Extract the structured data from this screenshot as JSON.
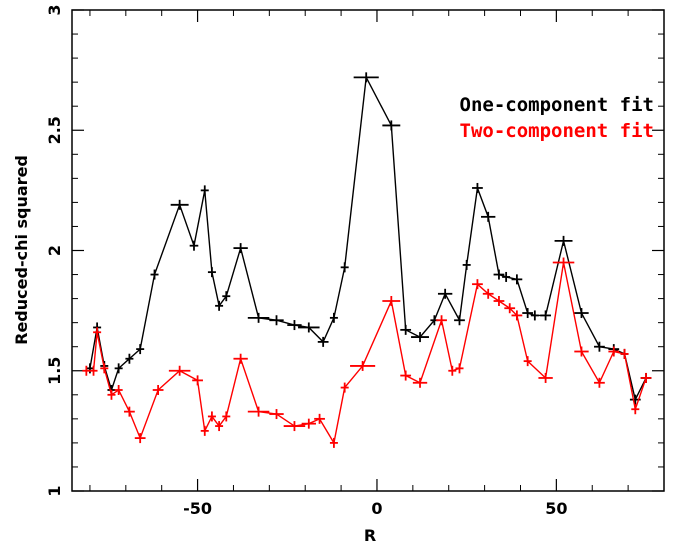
{
  "chart_data": {
    "type": "line",
    "xlabel": "R",
    "ylabel": "Reduced-chi squared",
    "xlim": [
      -85,
      80
    ],
    "ylim": [
      1,
      3
    ],
    "x_ticks": [
      -50,
      0,
      50
    ],
    "x_tick_labels": [
      "-50",
      "0",
      "50"
    ],
    "y_ticks": [
      1,
      1.5,
      2,
      2.5,
      3
    ],
    "y_tick_labels": [
      "1",
      "1.5",
      "2",
      "2.5",
      "3"
    ],
    "grid": false,
    "legend_position": "top-right",
    "series": [
      {
        "name": "One-component fit",
        "color": "#000000",
        "points": [
          {
            "x": -80,
            "y": 1.51,
            "xerr": 1
          },
          {
            "x": -78,
            "y": 1.68,
            "xerr": 0.6
          },
          {
            "x": -76,
            "y": 1.52,
            "xerr": 0.6
          },
          {
            "x": -74,
            "y": 1.42,
            "xerr": 0.6
          },
          {
            "x": -72,
            "y": 1.51,
            "xerr": 1
          },
          {
            "x": -69,
            "y": 1.55,
            "xerr": 1
          },
          {
            "x": -66,
            "y": 1.59,
            "xerr": 1
          },
          {
            "x": -62,
            "y": 1.9,
            "xerr": 1
          },
          {
            "x": -55,
            "y": 2.19,
            "xerr": 2.5
          },
          {
            "x": -51,
            "y": 2.02,
            "xerr": 1.2
          },
          {
            "x": -48,
            "y": 2.25,
            "xerr": 1
          },
          {
            "x": -46,
            "y": 1.91,
            "xerr": 0.6
          },
          {
            "x": -44,
            "y": 1.77,
            "xerr": 0.6
          },
          {
            "x": -42,
            "y": 1.81,
            "xerr": 0.6
          },
          {
            "x": -38,
            "y": 2.01,
            "xerr": 2
          },
          {
            "x": -33,
            "y": 1.72,
            "xerr": 3
          },
          {
            "x": -28,
            "y": 1.71,
            "xerr": 2
          },
          {
            "x": -23,
            "y": 1.69,
            "xerr": 2
          },
          {
            "x": -19,
            "y": 1.68,
            "xerr": 3
          },
          {
            "x": -15,
            "y": 1.62,
            "xerr": 1.5
          },
          {
            "x": -12,
            "y": 1.72,
            "xerr": 1
          },
          {
            "x": -9,
            "y": 1.93,
            "xerr": 0.6
          },
          {
            "x": -3,
            "y": 2.72,
            "xerr": 3.5
          },
          {
            "x": 4,
            "y": 2.52,
            "xerr": 2.5
          },
          {
            "x": 8,
            "y": 1.67,
            "xerr": 1.5
          },
          {
            "x": 12,
            "y": 1.64,
            "xerr": 2.5
          },
          {
            "x": 16,
            "y": 1.71,
            "xerr": 1
          },
          {
            "x": 19,
            "y": 1.82,
            "xerr": 2
          },
          {
            "x": 23,
            "y": 1.71,
            "xerr": 1.5
          },
          {
            "x": 25,
            "y": 1.94,
            "xerr": 0.6
          },
          {
            "x": 28,
            "y": 2.26,
            "xerr": 1.5
          },
          {
            "x": 31,
            "y": 2.14,
            "xerr": 2
          },
          {
            "x": 34,
            "y": 1.9,
            "xerr": 1.5
          },
          {
            "x": 36,
            "y": 1.89,
            "xerr": 1
          },
          {
            "x": 39,
            "y": 1.88,
            "xerr": 1.5
          },
          {
            "x": 42,
            "y": 1.74,
            "xerr": 1.5
          },
          {
            "x": 44,
            "y": 1.73,
            "xerr": 1
          },
          {
            "x": 47,
            "y": 1.73,
            "xerr": 1.5
          },
          {
            "x": 52,
            "y": 2.04,
            "xerr": 2.5
          },
          {
            "x": 57,
            "y": 1.74,
            "xerr": 2
          },
          {
            "x": 62,
            "y": 1.6,
            "xerr": 1.5
          },
          {
            "x": 66,
            "y": 1.59,
            "xerr": 1.5
          },
          {
            "x": 69,
            "y": 1.57,
            "xerr": 1
          },
          {
            "x": 72,
            "y": 1.38,
            "xerr": 1.5
          },
          {
            "x": 75,
            "y": 1.47,
            "xerr": 1.5
          }
        ]
      },
      {
        "name": "Two-component fit",
        "color": "#ff0000",
        "points": [
          {
            "x": -81,
            "y": 1.5,
            "xerr": 1
          },
          {
            "x": -79,
            "y": 1.5,
            "xerr": 0.6
          },
          {
            "x": -78,
            "y": 1.66,
            "xerr": 0.6
          },
          {
            "x": -76,
            "y": 1.51,
            "xerr": 0.6
          },
          {
            "x": -74,
            "y": 1.4,
            "xerr": 0.6
          },
          {
            "x": -72,
            "y": 1.42,
            "xerr": 1
          },
          {
            "x": -69,
            "y": 1.33,
            "xerr": 1.5
          },
          {
            "x": -66,
            "y": 1.22,
            "xerr": 1.5
          },
          {
            "x": -61,
            "y": 1.42,
            "xerr": 1.5
          },
          {
            "x": -55,
            "y": 1.5,
            "xerr": 3
          },
          {
            "x": -50,
            "y": 1.46,
            "xerr": 1.5
          },
          {
            "x": -48,
            "y": 1.25,
            "xerr": 1
          },
          {
            "x": -46,
            "y": 1.31,
            "xerr": 0.6
          },
          {
            "x": -44,
            "y": 1.27,
            "xerr": 0.6
          },
          {
            "x": -42,
            "y": 1.31,
            "xerr": 0.6
          },
          {
            "x": -38,
            "y": 1.55,
            "xerr": 2
          },
          {
            "x": -33,
            "y": 1.33,
            "xerr": 3
          },
          {
            "x": -28,
            "y": 1.32,
            "xerr": 2
          },
          {
            "x": -23,
            "y": 1.27,
            "xerr": 3
          },
          {
            "x": -19,
            "y": 1.28,
            "xerr": 2
          },
          {
            "x": -16,
            "y": 1.3,
            "xerr": 1.5
          },
          {
            "x": -12,
            "y": 1.2,
            "xerr": 1
          },
          {
            "x": -9,
            "y": 1.43,
            "xerr": 0.6
          },
          {
            "x": -4,
            "y": 1.52,
            "xerr": 3.5
          },
          {
            "x": 4,
            "y": 1.79,
            "xerr": 2.5
          },
          {
            "x": 8,
            "y": 1.48,
            "xerr": 1.5
          },
          {
            "x": 12,
            "y": 1.45,
            "xerr": 2
          },
          {
            "x": 18,
            "y": 1.71,
            "xerr": 1.5
          },
          {
            "x": 21,
            "y": 1.5,
            "xerr": 1
          },
          {
            "x": 23,
            "y": 1.51,
            "xerr": 1
          },
          {
            "x": 28,
            "y": 1.86,
            "xerr": 1.5
          },
          {
            "x": 31,
            "y": 1.82,
            "xerr": 1.5
          },
          {
            "x": 34,
            "y": 1.79,
            "xerr": 1.5
          },
          {
            "x": 37,
            "y": 1.76,
            "xerr": 1.5
          },
          {
            "x": 39,
            "y": 1.73,
            "xerr": 1.5
          },
          {
            "x": 42,
            "y": 1.54,
            "xerr": 1
          },
          {
            "x": 47,
            "y": 1.47,
            "xerr": 2
          },
          {
            "x": 52,
            "y": 1.95,
            "xerr": 3
          },
          {
            "x": 57,
            "y": 1.58,
            "xerr": 2
          },
          {
            "x": 62,
            "y": 1.45,
            "xerr": 1.5
          },
          {
            "x": 66,
            "y": 1.58,
            "xerr": 1.5
          },
          {
            "x": 69,
            "y": 1.57,
            "xerr": 1
          },
          {
            "x": 72,
            "y": 1.34,
            "xerr": 1
          },
          {
            "x": 75,
            "y": 1.47,
            "xerr": 1.5
          }
        ]
      }
    ]
  }
}
